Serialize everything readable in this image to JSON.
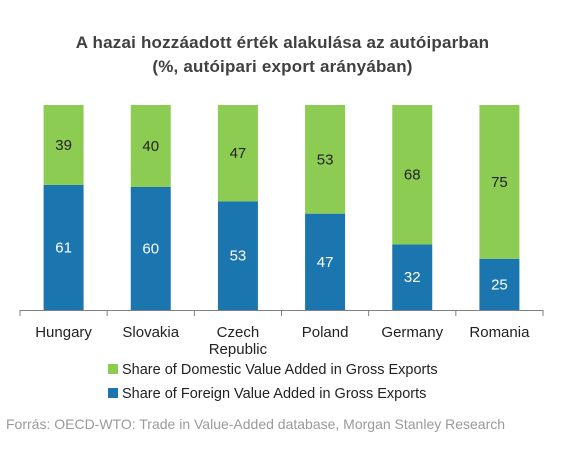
{
  "title": "A hazai hozzáadott érték alakulása az autóiparban",
  "subtitle": "(%, autóipari export arányában)",
  "source": "Forrás: OECD-WTO: Trade in Value-Added database, Morgan Stanley Research",
  "colors": {
    "domestic": "#8DCC52",
    "foreign": "#1B75AE"
  },
  "chart_data": {
    "type": "bar",
    "stacked": true,
    "categories": [
      "Hungary",
      "Slovakia",
      "Czech Republic",
      "Poland",
      "Germany",
      "Romania"
    ],
    "category_lines": [
      [
        "Hungary"
      ],
      [
        "Slovakia"
      ],
      [
        "Czech",
        "Republic"
      ],
      [
        "Poland"
      ],
      [
        "Germany"
      ],
      [
        "Romania"
      ]
    ],
    "series": [
      {
        "name": "Share of Foreign Value Added in Gross Exports",
        "values": [
          61,
          60,
          53,
          47,
          32,
          25
        ],
        "color": "#1B75AE"
      },
      {
        "name": "Share of Domestic Value Added in Gross Exports",
        "values": [
          39,
          40,
          47,
          53,
          68,
          75
        ],
        "color": "#8DCC52"
      }
    ],
    "ylim": [
      0,
      100
    ],
    "grid": false,
    "legend": "bottom"
  },
  "legend": [
    {
      "label": "Share of Domestic Value Added in Gross Exports",
      "color": "#8DCC52"
    },
    {
      "label": "Share of Foreign Value Added in Gross Exports",
      "color": "#1B75AE"
    }
  ]
}
